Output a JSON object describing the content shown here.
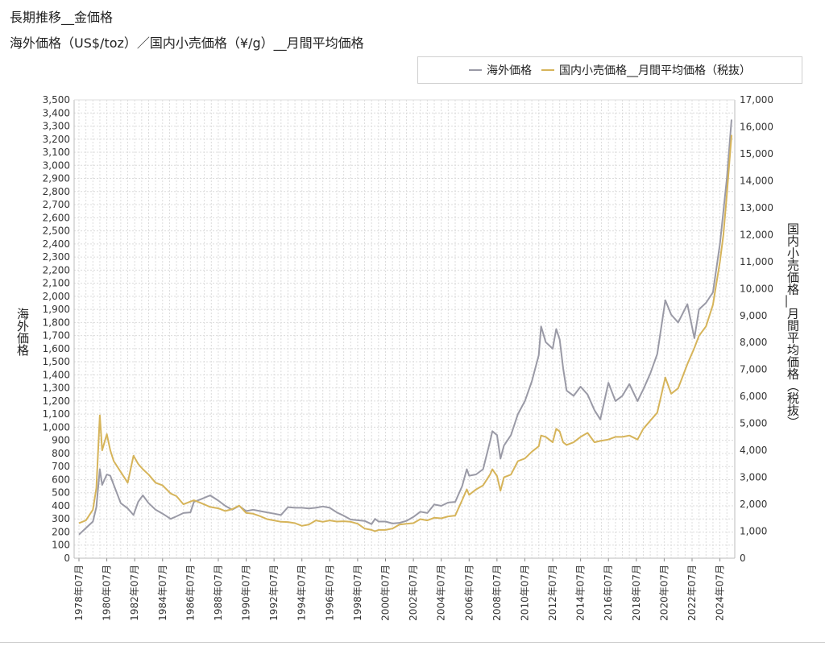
{
  "title": "長期推移__金価格",
  "subtitle": "海外価格（US$/toz）／国内小売価格（¥/g）__月間平均価格",
  "colors": {
    "overseas": "#9a9aa6",
    "domestic": "#d6b45a",
    "grid": "#dcdcdc",
    "axis": "#bbbbbb"
  },
  "chart_data": {
    "type": "line",
    "title": "長期推移__金価格",
    "subtitle": "海外価格（US$/toz）／国内小売価格（¥/g）__月間平均価格",
    "legend_position": "top-right",
    "grid": true,
    "xlabel": "",
    "ylabel_left": "海外価格",
    "ylabel_right": "国内小売価格__月間平均価格（税抜）",
    "ylim_left": [
      0,
      3500
    ],
    "ylim_right": [
      0,
      17000
    ],
    "yticks_left": [
      "0",
      "100",
      "200",
      "300",
      "400",
      "500",
      "600",
      "700",
      "800",
      "900",
      "1,000",
      "1,100",
      "1,200",
      "1,300",
      "1,400",
      "1,500",
      "1,600",
      "1,700",
      "1,800",
      "1,900",
      "2,000",
      "2,100",
      "2,200",
      "2,300",
      "2,400",
      "2,500",
      "2,600",
      "2,700",
      "2,800",
      "2,900",
      "3,000",
      "3,100",
      "3,200",
      "3,300",
      "3,400",
      "3,500"
    ],
    "yticks_right": [
      "0",
      "1,000",
      "2,000",
      "3,000",
      "4,000",
      "5,000",
      "6,000",
      "7,000",
      "8,000",
      "9,000",
      "10,000",
      "11,000",
      "12,000",
      "13,000",
      "14,000",
      "15,000",
      "16,000",
      "17,000"
    ],
    "xticks": [
      "1978年07月",
      "1980年07月",
      "1982年07月",
      "1984年07月",
      "1986年07月",
      "1988年07月",
      "1990年07月",
      "1992年07月",
      "1994年07月",
      "1996年07月",
      "1998年07月",
      "2000年07月",
      "2002年07月",
      "2004年07月",
      "2006年07月",
      "2008年07月",
      "2010年07月",
      "2012年07月",
      "2014年07月",
      "2016年07月",
      "2018年07月",
      "2020年07月",
      "2022年07月",
      "2024年07月"
    ],
    "x_range": [
      "1978-07",
      "2025-05"
    ],
    "series": [
      {
        "name": "海外価格",
        "axis": "left",
        "x": [
          "1978-07",
          "1979-01",
          "1979-07",
          "1979-10",
          "1980-01",
          "1980-03",
          "1980-07",
          "1980-10",
          "1981-01",
          "1981-07",
          "1982-01",
          "1982-06",
          "1982-10",
          "1983-02",
          "1983-07",
          "1984-01",
          "1984-07",
          "1985-02",
          "1985-07",
          "1986-01",
          "1986-07",
          "1986-10",
          "1987-04",
          "1987-12",
          "1988-07",
          "1989-01",
          "1989-07",
          "1990-01",
          "1990-07",
          "1991-01",
          "1991-07",
          "1992-01",
          "1992-07",
          "1993-01",
          "1993-07",
          "1994-01",
          "1994-07",
          "1995-01",
          "1995-07",
          "1996-01",
          "1996-07",
          "1997-01",
          "1997-07",
          "1998-01",
          "1998-07",
          "1999-01",
          "1999-07",
          "1999-10",
          "2000-01",
          "2000-07",
          "2001-01",
          "2001-07",
          "2002-01",
          "2002-07",
          "2003-01",
          "2003-07",
          "2004-01",
          "2004-07",
          "2005-01",
          "2005-07",
          "2006-01",
          "2006-05",
          "2006-07",
          "2007-01",
          "2007-07",
          "2008-01",
          "2008-03",
          "2008-07",
          "2008-10",
          "2009-01",
          "2009-07",
          "2010-01",
          "2010-07",
          "2011-01",
          "2011-07",
          "2011-09",
          "2012-01",
          "2012-07",
          "2012-10",
          "2013-01",
          "2013-04",
          "2013-07",
          "2014-01",
          "2014-07",
          "2015-01",
          "2015-07",
          "2015-12",
          "2016-07",
          "2017-01",
          "2017-07",
          "2018-01",
          "2018-08",
          "2019-01",
          "2019-07",
          "2020-01",
          "2020-08",
          "2021-01",
          "2021-07",
          "2022-03",
          "2022-09",
          "2023-01",
          "2023-07",
          "2024-01",
          "2024-07",
          "2024-10",
          "2025-01",
          "2025-05"
        ],
        "values": [
          180,
          230,
          280,
          390,
          680,
          560,
          640,
          630,
          560,
          420,
          380,
          330,
          430,
          480,
          420,
          370,
          340,
          300,
          320,
          345,
          350,
          430,
          450,
          480,
          440,
          400,
          370,
          400,
          360,
          370,
          360,
          350,
          340,
          330,
          390,
          385,
          385,
          380,
          385,
          395,
          385,
          350,
          325,
          295,
          290,
          285,
          260,
          300,
          280,
          280,
          265,
          270,
          285,
          315,
          355,
          345,
          410,
          400,
          425,
          430,
          550,
          680,
          630,
          640,
          680,
          890,
          970,
          940,
          760,
          860,
          940,
          1100,
          1200,
          1350,
          1550,
          1770,
          1650,
          1600,
          1750,
          1670,
          1450,
          1280,
          1240,
          1310,
          1250,
          1130,
          1060,
          1340,
          1200,
          1240,
          1330,
          1200,
          1290,
          1410,
          1560,
          1970,
          1860,
          1800,
          1940,
          1680,
          1900,
          1950,
          2030,
          2400,
          2650,
          2900,
          3350
        ]
      },
      {
        "name": "国内小売価格__月間平均価格（税抜）",
        "axis": "right",
        "x": [
          "1978-07",
          "1979-01",
          "1979-07",
          "1979-10",
          "1980-01",
          "1980-03",
          "1980-07",
          "1980-10",
          "1981-01",
          "1981-07",
          "1982-01",
          "1982-06",
          "1982-10",
          "1983-02",
          "1983-07",
          "1984-01",
          "1984-07",
          "1985-02",
          "1985-07",
          "1986-01",
          "1986-07",
          "1986-10",
          "1987-04",
          "1987-12",
          "1988-07",
          "1989-01",
          "1989-07",
          "1990-01",
          "1990-07",
          "1991-01",
          "1991-07",
          "1992-01",
          "1992-07",
          "1993-01",
          "1993-07",
          "1994-01",
          "1994-07",
          "1995-01",
          "1995-07",
          "1996-01",
          "1996-07",
          "1997-01",
          "1997-07",
          "1998-01",
          "1998-07",
          "1999-01",
          "1999-07",
          "1999-10",
          "2000-01",
          "2000-07",
          "2001-01",
          "2001-07",
          "2002-01",
          "2002-07",
          "2003-01",
          "2003-07",
          "2004-01",
          "2004-07",
          "2005-01",
          "2005-07",
          "2006-01",
          "2006-05",
          "2006-07",
          "2007-01",
          "2007-07",
          "2008-01",
          "2008-03",
          "2008-07",
          "2008-10",
          "2009-01",
          "2009-07",
          "2010-01",
          "2010-07",
          "2011-01",
          "2011-07",
          "2011-09",
          "2012-01",
          "2012-07",
          "2012-10",
          "2013-01",
          "2013-04",
          "2013-07",
          "2014-01",
          "2014-07",
          "2015-01",
          "2015-07",
          "2015-12",
          "2016-07",
          "2017-01",
          "2017-07",
          "2018-01",
          "2018-08",
          "2019-01",
          "2019-07",
          "2020-01",
          "2020-08",
          "2021-01",
          "2021-07",
          "2022-03",
          "2022-09",
          "2023-01",
          "2023-07",
          "2024-01",
          "2024-07",
          "2024-10",
          "2025-01",
          "2025-05"
        ],
        "values": [
          1300,
          1400,
          1800,
          2600,
          5300,
          4000,
          4600,
          4000,
          3600,
          3200,
          2800,
          3800,
          3500,
          3300,
          3100,
          2800,
          2700,
          2400,
          2300,
          2000,
          2100,
          2150,
          2050,
          1900,
          1850,
          1750,
          1820,
          1950,
          1680,
          1650,
          1560,
          1450,
          1400,
          1350,
          1340,
          1300,
          1200,
          1250,
          1400,
          1350,
          1400,
          1360,
          1370,
          1350,
          1280,
          1100,
          1050,
          1000,
          1050,
          1050,
          1100,
          1250,
          1280,
          1300,
          1450,
          1400,
          1500,
          1480,
          1550,
          1580,
          2150,
          2550,
          2350,
          2550,
          2700,
          3100,
          3300,
          3050,
          2500,
          3000,
          3100,
          3600,
          3700,
          3950,
          4150,
          4550,
          4500,
          4300,
          4800,
          4700,
          4300,
          4200,
          4300,
          4500,
          4650,
          4300,
          4350,
          4400,
          4500,
          4500,
          4550,
          4400,
          4800,
          5100,
          5400,
          6700,
          6100,
          6300,
          7200,
          7800,
          8250,
          8600,
          9400,
          11000,
          12000,
          13500,
          15700
        ]
      }
    ]
  }
}
